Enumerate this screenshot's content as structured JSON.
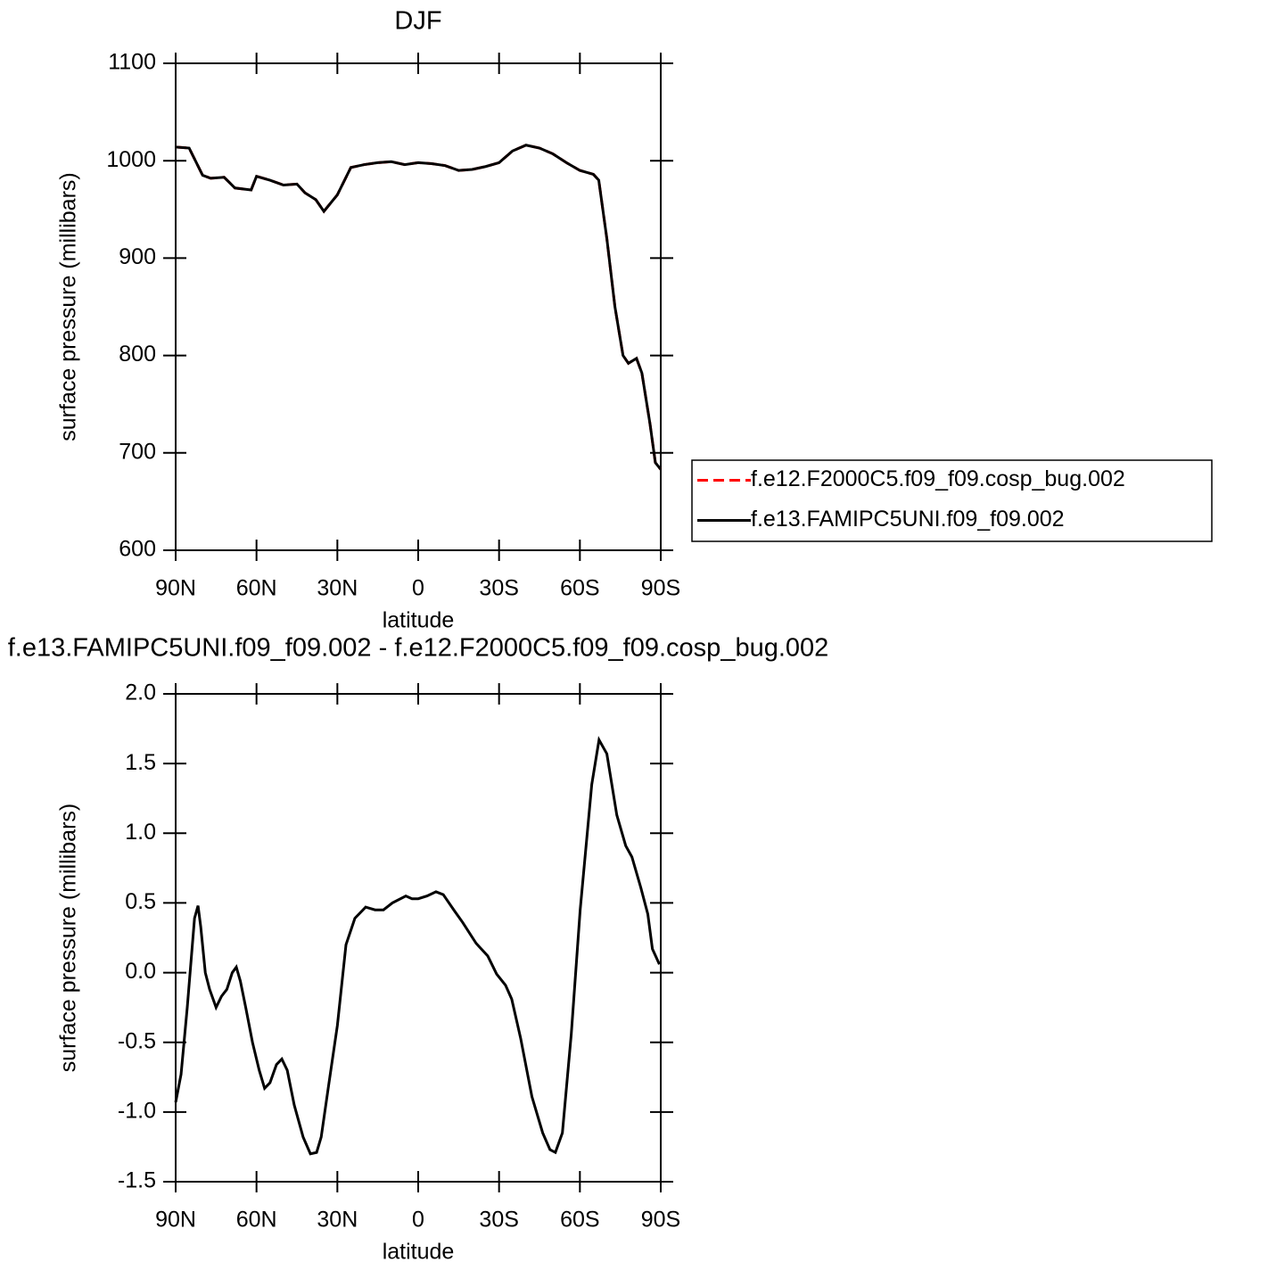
{
  "chart_data": [
    {
      "type": "line",
      "title": "DJF",
      "xlabel": "latitude",
      "ylabel": "surface pressure (millibars)",
      "xlim": [
        90,
        -90
      ],
      "xticks": [
        {
          "value": 90,
          "label": "90N"
        },
        {
          "value": 60,
          "label": "60N"
        },
        {
          "value": 30,
          "label": "30N"
        },
        0,
        {
          "value": -30,
          "label": "30S"
        },
        {
          "value": -60,
          "label": "60S"
        },
        {
          "value": -90,
          "label": "90S"
        }
      ],
      "ylim": [
        600,
        1100
      ],
      "yticks": [
        600,
        700,
        800,
        900,
        1000,
        1100
      ],
      "legend": "outside-right",
      "x": [
        90,
        85,
        80,
        77,
        72,
        68,
        62,
        60,
        55,
        50,
        45,
        42,
        38,
        35,
        30,
        25,
        20,
        15,
        10,
        5,
        0,
        -5,
        -10,
        -15,
        -20,
        -25,
        -30,
        -35,
        -40,
        -45,
        -50,
        -55,
        -60,
        -65,
        -67,
        -70,
        -73,
        -76,
        -78,
        -81,
        -83,
        -86,
        -88,
        -90
      ],
      "series": [
        {
          "name": "f.e12.F2000C5.f09_f09.cosp_bug.002",
          "color": "#ff0000",
          "dash": "dashed",
          "values": [
            1014,
            1013,
            985,
            982,
            983,
            972,
            970,
            984,
            980,
            975,
            976,
            967,
            960,
            948,
            965,
            993,
            996,
            998,
            999,
            996,
            998,
            997,
            995,
            990,
            991,
            994,
            998,
            1010,
            1016,
            1013,
            1007,
            998,
            990,
            986,
            980,
            920,
            850,
            800,
            792,
            797,
            782,
            730,
            690,
            683
          ]
        },
        {
          "name": "f.e13.FAMIPC5UNI.f09_f09.002",
          "color": "#000000",
          "dash": "solid",
          "values": [
            1014,
            1013,
            985,
            982,
            983,
            972,
            970,
            984,
            980,
            975,
            976,
            967,
            960,
            948,
            965,
            993,
            996,
            998,
            999,
            996,
            998,
            997,
            995,
            990,
            991,
            994,
            998,
            1010,
            1016,
            1013,
            1007,
            998,
            990,
            986,
            980,
            920,
            850,
            800,
            792,
            797,
            782,
            730,
            690,
            683
          ]
        }
      ]
    },
    {
      "type": "line",
      "title": "f.e13.FAMIPC5UNI.f09_f09.002 - f.e12.F2000C5.f09_f09.cosp_bug.002",
      "xlabel": "latitude",
      "ylabel": "surface pressure (millibars)",
      "xlim": [
        90,
        -90
      ],
      "xticks": [
        {
          "value": 90,
          "label": "90N"
        },
        {
          "value": 60,
          "label": "60N"
        },
        {
          "value": 30,
          "label": "30N"
        },
        0,
        {
          "value": -30,
          "label": "30S"
        },
        {
          "value": -60,
          "label": "60S"
        },
        {
          "value": -90,
          "label": "90S"
        }
      ],
      "ylim": [
        -1.5,
        2
      ],
      "yticks": [
        -1.5,
        {
          "value": -1,
          "label": "-1.0"
        },
        -0.5,
        {
          "value": 0,
          "label": "0.0"
        },
        0.5,
        {
          "value": 1,
          "label": "1.0"
        },
        1.5,
        {
          "value": 2,
          "label": "2.0"
        }
      ],
      "x": [
        90,
        88,
        85.7,
        83,
        81.7,
        80.7,
        79,
        77.4,
        75,
        73,
        71,
        69,
        67.5,
        66,
        64,
        61.5,
        59,
        57,
        55,
        52.6,
        50.6,
        48.6,
        46,
        42.7,
        40,
        37.7,
        36,
        33.4,
        30,
        26.8,
        23.5,
        19.5,
        16,
        12.9,
        9.6,
        4.6,
        2.3,
        0,
        -3.3,
        -6.6,
        -9.3,
        -13.2,
        -16.5,
        -21.5,
        -25.8,
        -29.1,
        -32.4,
        -34.7,
        -38,
        -42.2,
        -46.2,
        -48.9,
        -50.9,
        -53.5,
        -56.8,
        -60.1,
        -64.4,
        -67.1,
        -70,
        -73.7,
        -77,
        -79.3,
        -82.6,
        -85.2,
        -86.9,
        -89.5
      ],
      "series": [
        {
          "color": "#000000",
          "dash": "solid",
          "values": [
            -0.93,
            -0.73,
            -0.25,
            0.39,
            0.48,
            0.33,
            0,
            -0.12,
            -0.25,
            -0.17,
            -0.12,
            0,
            0.04,
            -0.06,
            -0.25,
            -0.5,
            -0.7,
            -0.83,
            -0.79,
            -0.66,
            -0.62,
            -0.7,
            -0.95,
            -1.18,
            -1.3,
            -1.29,
            -1.18,
            -0.83,
            -0.38,
            0.2,
            0.39,
            0.47,
            0.45,
            0.45,
            0.5,
            0.55,
            0.53,
            0.53,
            0.55,
            0.58,
            0.56,
            0.45,
            0.36,
            0.21,
            0.12,
            -0.01,
            -0.09,
            -0.19,
            -0.47,
            -0.89,
            -1.15,
            -1.27,
            -1.29,
            -1.15,
            -0.44,
            0.45,
            1.35,
            1.67,
            1.57,
            1.13,
            0.91,
            0.83,
            0.61,
            0.42,
            0.17,
            0.06
          ]
        }
      ]
    }
  ]
}
